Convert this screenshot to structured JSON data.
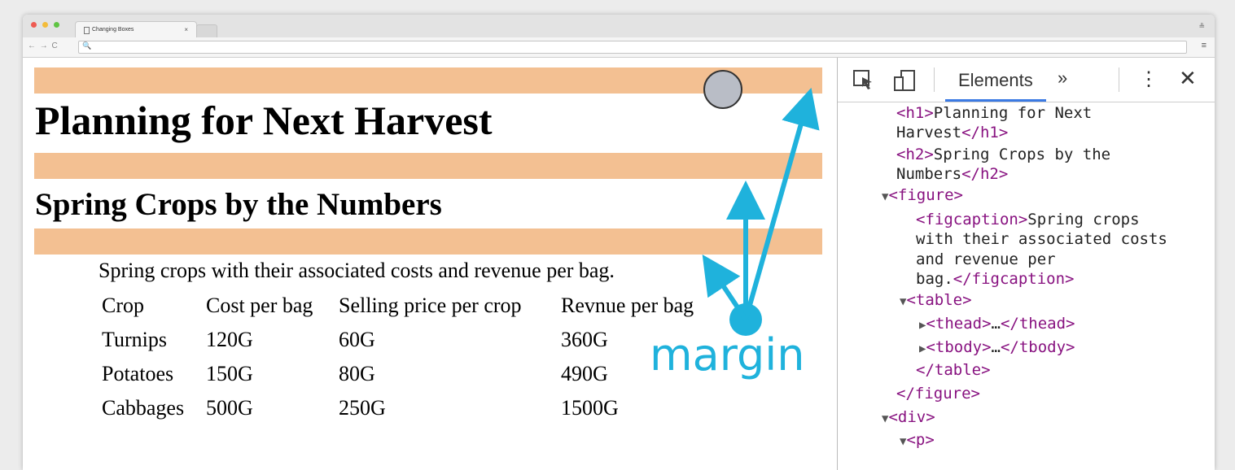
{
  "browser": {
    "tab_title": "Changing Boxes",
    "tab_close": "×",
    "nav_buttons": "← → C",
    "search_glyph": "🔍"
  },
  "page": {
    "h1": "Planning for Next Harvest",
    "h2": "Spring Crops by the Numbers",
    "figcaption": "Spring crops with their associated costs and revenue per bag.",
    "table": {
      "headers": [
        "Crop",
        "Cost per bag",
        "Selling price per crop",
        "Revnue per bag"
      ],
      "rows": [
        [
          "Turnips",
          "120G",
          "60G",
          "360G"
        ],
        [
          "Potatoes",
          "150G",
          "80G",
          "490G"
        ],
        [
          "Cabbages",
          "500G",
          "250G",
          "1500G"
        ]
      ]
    },
    "margin_color": "#f3c092"
  },
  "annotation": {
    "label": "margin",
    "color": "#1fb2dc"
  },
  "devtools": {
    "tab_label": "Elements",
    "more_label": "»",
    "kebab_label": "⋮",
    "close_label": "✕",
    "lines": [
      {
        "tri": "",
        "open": "<h1>",
        "text": "Planning for Next",
        "close": ""
      },
      {
        "tri": "",
        "open": "",
        "text": "Harvest",
        "close": "</h1>"
      },
      {
        "tri": "",
        "open": "<h2>",
        "text": "Spring Crops by the",
        "close": ""
      },
      {
        "tri": "",
        "open": "",
        "text": "Numbers",
        "close": "</h2>"
      },
      {
        "tri": "▼",
        "open": "<figure>",
        "text": "",
        "close": ""
      },
      {
        "tri": "",
        "open": "<figcaption>",
        "text": "Spring crops",
        "close": ""
      },
      {
        "tri": "",
        "open": "",
        "text": "with their associated costs",
        "close": ""
      },
      {
        "tri": "",
        "open": "",
        "text": "and revenue per",
        "close": ""
      },
      {
        "tri": "",
        "open": "",
        "text": "bag.",
        "close": "</figcaption>"
      },
      {
        "tri": "▼",
        "open": "<table>",
        "text": "",
        "close": ""
      },
      {
        "tri": "▶",
        "open": "<thead>",
        "text": "…",
        "close": "</thead>"
      },
      {
        "tri": "▶",
        "open": "<tbody>",
        "text": "…",
        "close": "</tbody>"
      },
      {
        "tri": "",
        "open": "",
        "text": "",
        "close": "</table>"
      },
      {
        "tri": "",
        "open": "",
        "text": "",
        "close": "</figure>"
      },
      {
        "tri": "▼",
        "open": "<div>",
        "text": "",
        "close": ""
      },
      {
        "tri": "▼",
        "open": "<p>",
        "text": "",
        "close": ""
      }
    ]
  }
}
